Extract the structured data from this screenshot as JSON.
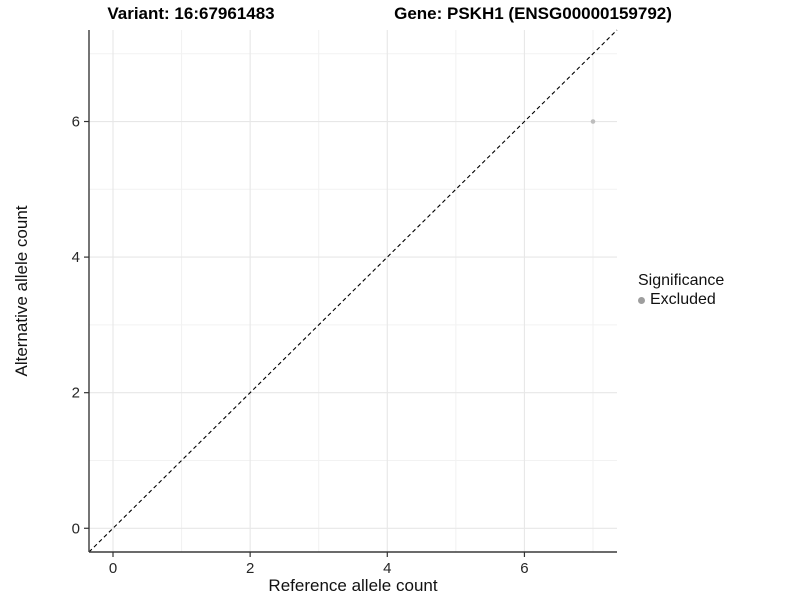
{
  "header": {
    "variant_title": "Variant: 16:67961483",
    "gene_title": "Gene: PSKH1 (ENSG00000159792)"
  },
  "chart_data": {
    "type": "scatter",
    "title_left": "Variant: 16:67961483",
    "title_right": "Gene: PSKH1 (ENSG00000159792)",
    "xlabel": "Reference allele count",
    "ylabel": "Alternative allele count",
    "xlim": [
      -0.35,
      7.35
    ],
    "ylim": [
      -0.35,
      7.35
    ],
    "x_major_ticks": [
      0,
      2,
      4,
      6
    ],
    "y_major_ticks": [
      0,
      2,
      4,
      6
    ],
    "x_minor_gridlines": [
      1,
      3,
      5,
      7
    ],
    "y_minor_gridlines": [
      1,
      3,
      5,
      7
    ],
    "grid": true,
    "points": [
      {
        "x": 7,
        "y": 6,
        "significance": "Excluded"
      }
    ],
    "identity_line": {
      "style": "dashed",
      "slope": 1,
      "intercept": 0,
      "color": "#000000"
    },
    "legend": {
      "title": "Significance",
      "position": "right",
      "items": [
        {
          "label": "Excluded",
          "color": "#9e9e9e"
        }
      ]
    },
    "colors": {
      "point": "#bdbdbd",
      "major_grid": "#e7e7e7",
      "minor_grid": "#f2f2f2",
      "axis_line": "#3a3a3a",
      "tick_mark": "#333333",
      "tick_label": "#262626",
      "background": "#ffffff"
    }
  }
}
